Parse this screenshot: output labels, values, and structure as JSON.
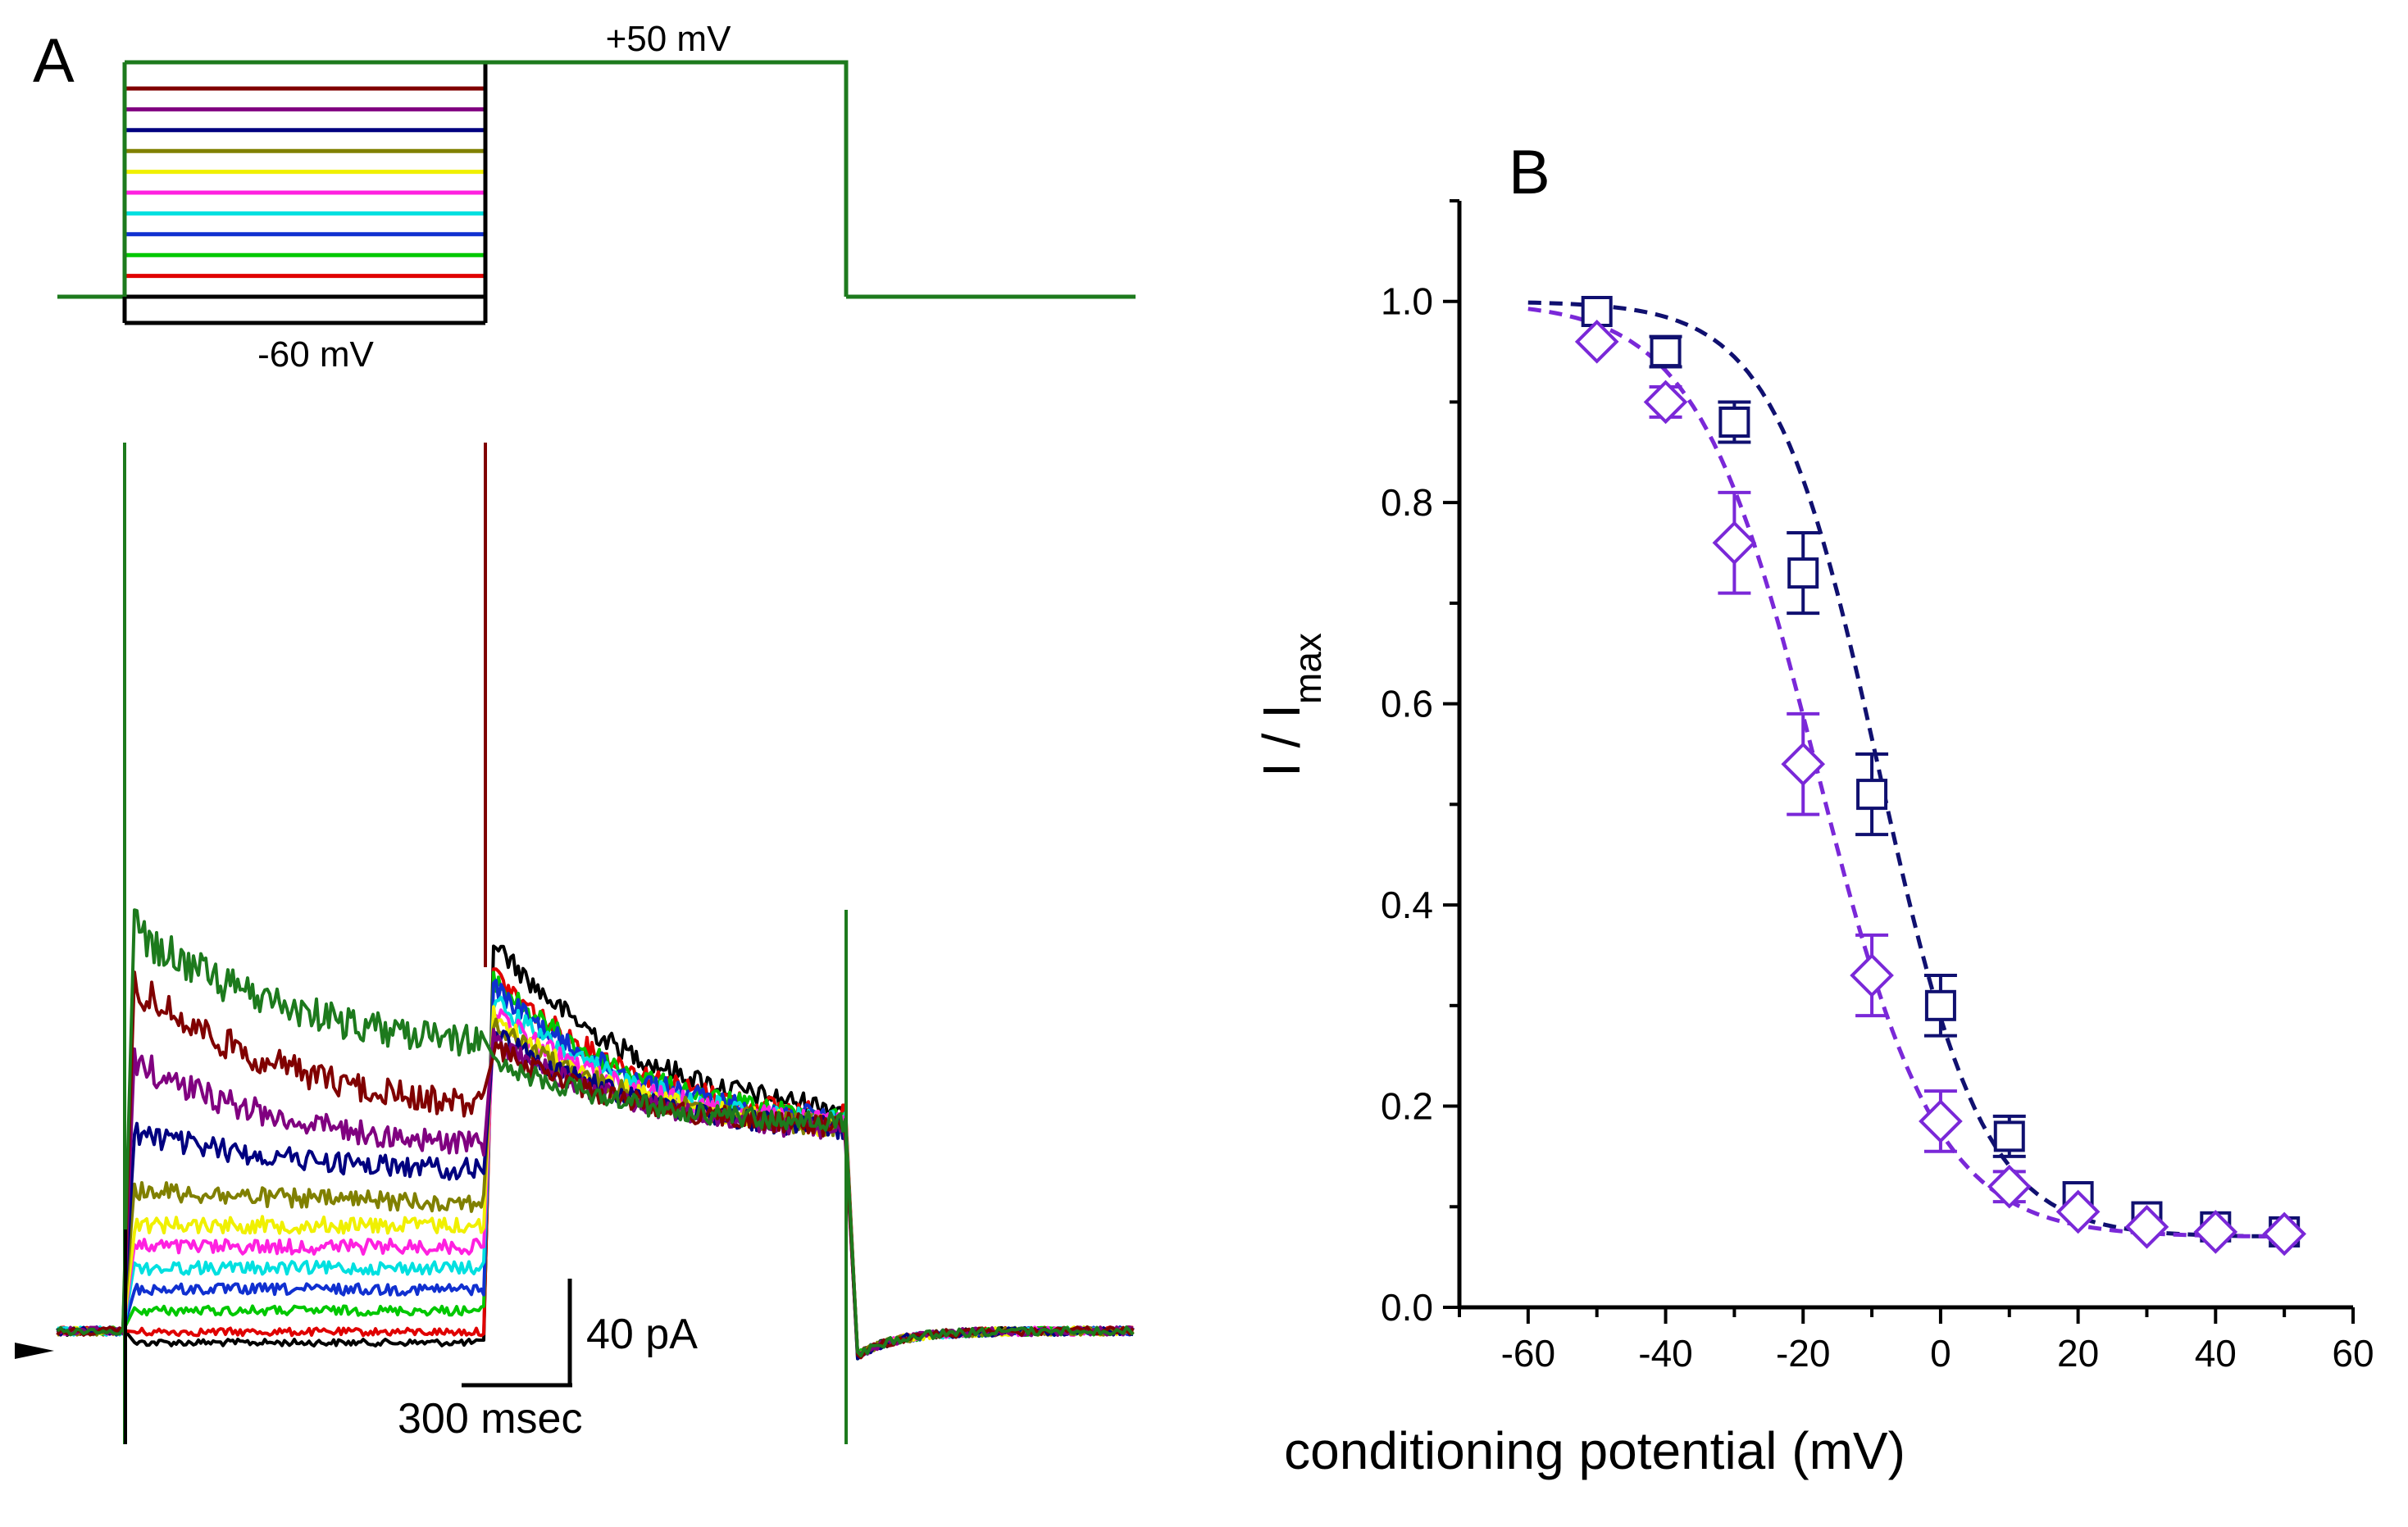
{
  "panel_a": {
    "letter": "A",
    "protocol": {
      "test_label": "+50 mV",
      "holding_label": "-60 mV",
      "test_color": "#1d7a1d",
      "step_colors": [
        "#000000",
        "#e00000",
        "#00c800",
        "#1030d0",
        "#00e0e0",
        "#ff20e0",
        "#f0f000",
        "#808000",
        "#000080",
        "#800080",
        "#800000",
        "#1d7a1d"
      ]
    },
    "scale_bar": {
      "current": "40 pA",
      "time": "300 msec"
    },
    "traces": {
      "conditioning_amplitudes_pA": [
        0,
        4,
        12,
        20,
        28,
        36,
        45,
        58,
        80,
        108,
        137,
        158
      ],
      "conditioning_final_pA": [
        0,
        4,
        12,
        20,
        28,
        36,
        44,
        52,
        63,
        70,
        83,
        107
      ],
      "test_peak_pA": [
        155,
        142,
        140,
        137,
        132,
        127,
        125,
        122,
        119,
        116,
        113,
        108
      ],
      "test_final_pA": [
        82,
        80,
        79,
        79,
        78,
        78,
        77,
        77,
        77,
        76,
        78,
        80
      ]
    }
  },
  "panel_b": {
    "letter": "B",
    "chart_data": {
      "type": "scatter",
      "title": "",
      "xlabel": "conditioning potential (mV)",
      "ylabel_main": "I / I",
      "ylabel_sub": "max",
      "xlim": [
        -70,
        60
      ],
      "ylim": [
        0,
        1.1
      ],
      "x_ticks": [
        -60,
        -40,
        -20,
        0,
        20,
        40,
        60
      ],
      "y_ticks": [
        0.0,
        0.2,
        0.4,
        0.6,
        0.8,
        1.0
      ],
      "x_tick_labels": [
        "-60",
        "-40",
        "-20",
        "0",
        "20",
        "40",
        "60"
      ],
      "y_tick_labels": [
        "0.0",
        "0.2",
        "0.4",
        "0.6",
        "0.8",
        "1.0"
      ],
      "series": [
        {
          "name": "squares",
          "marker": "square",
          "color": "#101070",
          "x": [
            -50,
            -40,
            -30,
            -20,
            -10,
            0,
            10,
            20,
            30,
            40,
            50
          ],
          "y": [
            0.99,
            0.95,
            0.88,
            0.73,
            0.51,
            0.3,
            0.17,
            0.11,
            0.09,
            0.08,
            0.075
          ],
          "err": [
            0.01,
            0.015,
            0.02,
            0.04,
            0.04,
            0.03,
            0.02,
            0.01,
            0.01,
            0.01,
            0.01
          ],
          "fit": {
            "v_half": -9,
            "k": 7.6,
            "bottom": 0.07,
            "top": 1.0
          }
        },
        {
          "name": "diamonds",
          "marker": "diamond",
          "color": "#7a28d8",
          "x": [
            -50,
            -40,
            -30,
            -20,
            -10,
            0,
            10,
            20,
            30,
            40,
            50
          ],
          "y": [
            0.96,
            0.9,
            0.76,
            0.54,
            0.33,
            0.185,
            0.12,
            0.095,
            0.08,
            0.075,
            0.073
          ],
          "err": [
            0.01,
            0.015,
            0.05,
            0.05,
            0.04,
            0.03,
            0.015,
            0.01,
            0.01,
            0.01,
            0.01
          ],
          "fit": {
            "v_half": -18,
            "k": 8.7,
            "bottom": 0.07,
            "top": 1.0
          }
        }
      ]
    }
  }
}
